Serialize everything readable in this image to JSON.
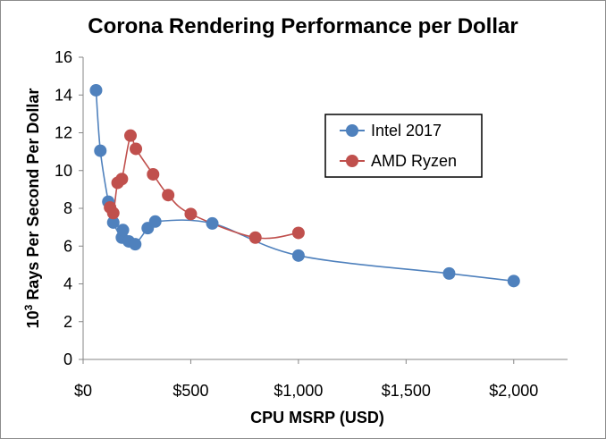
{
  "chart_data": {
    "type": "scatter",
    "title": "Corona Rendering Performance per Dollar",
    "xlabel": "CPU MSRP (USD)",
    "ylabel_base": "10",
    "ylabel_sup": "3",
    "ylabel_rest": " Rays Per Second Per Dollar",
    "xlim": [
      0,
      2250
    ],
    "ylim": [
      0,
      16
    ],
    "xticks": [
      0,
      500,
      1000,
      1500,
      2000
    ],
    "xtick_labels": [
      "$0",
      "$500",
      "$1,000",
      "$1,500",
      "$2,000"
    ],
    "yticks": [
      0,
      2,
      4,
      6,
      8,
      10,
      12,
      14,
      16
    ],
    "ytick_labels": [
      "0",
      "2",
      "4",
      "6",
      "8",
      "10",
      "12",
      "14",
      "16"
    ],
    "grid": false,
    "legend_position": "top-right",
    "series": [
      {
        "name": "Intel 2017",
        "color": "#4f81bd",
        "marker": "circle",
        "line": "smooth",
        "points": [
          [
            60,
            14.25
          ],
          [
            80,
            11.05
          ],
          [
            117,
            8.35
          ],
          [
            140,
            7.25
          ],
          [
            180,
            6.45
          ],
          [
            185,
            6.85
          ],
          [
            212,
            6.25
          ],
          [
            242,
            6.1
          ],
          [
            300,
            6.95
          ],
          [
            335,
            7.3
          ],
          [
            600,
            7.2
          ],
          [
            1000,
            5.5
          ],
          [
            1700,
            4.55
          ],
          [
            2000,
            4.15
          ]
        ]
      },
      {
        "name": "AMD Ryzen",
        "color": "#c0504d",
        "marker": "circle",
        "line": "smooth",
        "points": [
          [
            125,
            8.05
          ],
          [
            140,
            7.75
          ],
          [
            160,
            9.35
          ],
          [
            180,
            9.55
          ],
          [
            220,
            11.85
          ],
          [
            245,
            11.15
          ],
          [
            325,
            9.8
          ],
          [
            395,
            8.7
          ],
          [
            500,
            7.7
          ],
          [
            800,
            6.45
          ],
          [
            1000,
            6.7
          ]
        ]
      }
    ]
  }
}
